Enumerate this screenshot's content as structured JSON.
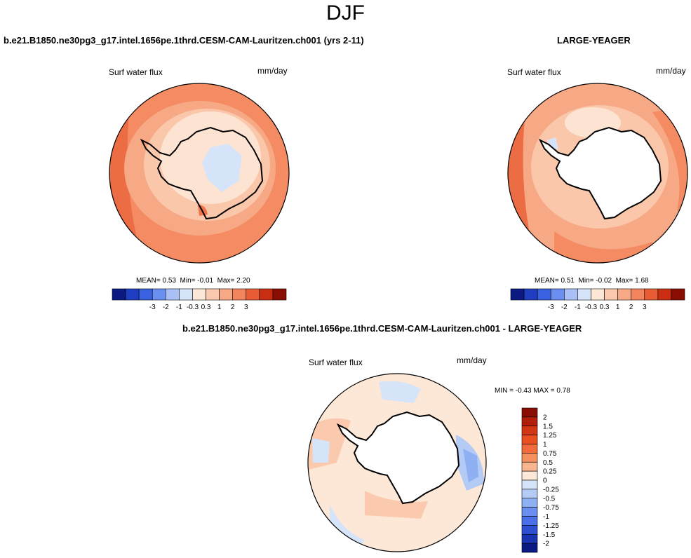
{
  "figure": {
    "title": "DJF"
  },
  "panels": [
    {
      "title": "b.e21.B1850.ne30pg3_g17.intel.1656pe.1thrd.CESM-CAM-Lauritzen.ch001 (yrs 2-11)",
      "variable": "Surf water flux",
      "units": "mm/day",
      "stats": {
        "mean_label": "MEAN=",
        "mean": "0.53",
        "min_label": "Min=",
        "min": "-0.01",
        "max_label": "Max=",
        "max": "2.20"
      }
    },
    {
      "title": "LARGE-YEAGER",
      "variable": "Surf water flux",
      "units": "mm/day",
      "stats": {
        "mean_label": "MEAN=",
        "mean": "0.51",
        "min_label": "Min=",
        "min": "-0.02",
        "max_label": "Max=",
        "max": "1.68"
      }
    },
    {
      "title": "b.e21.B1850.ne30pg3_g17.intel.1656pe.1thrd.CESM-CAM-Lauritzen.ch001 - LARGE-YEAGER",
      "variable": "Surf water flux",
      "units": "mm/day",
      "stats": {
        "min_label": "MIN =",
        "min": "-0.43",
        "max_label": "MAX =",
        "max": "0.78"
      }
    }
  ],
  "chart_data": [
    {
      "type": "heatmap",
      "projection": "south-polar-stereographic",
      "title": "b.e21.B1850.ne30pg3_g17.intel.1656pe.1thrd.CESM-CAM-Lauritzen.ch001 (yrs 2-11)",
      "variable": "Surf water flux",
      "units": "mm/day",
      "mean": 0.53,
      "min": -0.01,
      "max": 2.2,
      "colorbar": {
        "orientation": "horizontal",
        "levels": [
          -3,
          -2,
          -1,
          -0.3,
          0.3,
          1,
          2,
          3
        ],
        "level_labels": [
          "-3",
          "-2",
          "-1",
          "-0.3",
          "0.3",
          "1",
          "2",
          "3"
        ],
        "colors": [
          "#0a1a80",
          "#1f3fc0",
          "#3a62e0",
          "#6b8ff0",
          "#a8c0f5",
          "#d6e4fa",
          "#fde8d8",
          "#fbcaae",
          "#f7a884",
          "#f2845e",
          "#e85d36",
          "#c92d12",
          "#8a0d03"
        ]
      }
    },
    {
      "type": "heatmap",
      "projection": "south-polar-stereographic",
      "title": "LARGE-YEAGER",
      "variable": "Surf water flux",
      "units": "mm/day",
      "mean": 0.51,
      "min": -0.02,
      "max": 1.68,
      "colorbar": {
        "orientation": "horizontal",
        "levels": [
          -3,
          -2,
          -1,
          -0.3,
          0.3,
          1,
          2,
          3
        ],
        "level_labels": [
          "-3",
          "-2",
          "-1",
          "-0.3",
          "0.3",
          "1",
          "2",
          "3"
        ],
        "colors": [
          "#0a1a80",
          "#1f3fc0",
          "#3a62e0",
          "#6b8ff0",
          "#a8c0f5",
          "#d6e4fa",
          "#fde8d8",
          "#fbcaae",
          "#f7a884",
          "#f2845e",
          "#e85d36",
          "#c92d12",
          "#8a0d03"
        ]
      }
    },
    {
      "type": "heatmap",
      "projection": "south-polar-stereographic",
      "title": "b.e21.B1850.ne30pg3_g17.intel.1656pe.1thrd.CESM-CAM-Lauritzen.ch001 - LARGE-YEAGER",
      "variable": "Surf water flux",
      "units": "mm/day",
      "min": -0.43,
      "max": 0.78,
      "colorbar": {
        "orientation": "vertical",
        "levels": [
          2,
          1.5,
          1.25,
          1,
          0.75,
          0.5,
          0.25,
          0,
          -0.25,
          -0.5,
          -0.75,
          -1,
          -1.25,
          -1.5,
          -2
        ],
        "level_labels": [
          "2",
          "1.5",
          "1.25",
          "1",
          "0.75",
          "0.5",
          "0.25",
          "0",
          "-0.25",
          "-0.5",
          "-0.75",
          "-1",
          "-1.25",
          "-1.5",
          "-2"
        ],
        "colors": [
          "#8a0d03",
          "#b01f0a",
          "#d23612",
          "#ea4f22",
          "#f26b3c",
          "#f6905f",
          "#f9b58f",
          "#fde8d8",
          "#d6e4fa",
          "#b4cbf6",
          "#8fb0f2",
          "#6b8ff0",
          "#4a6fe6",
          "#2e4fd2",
          "#1a33b0",
          "#0a1a80"
        ]
      }
    }
  ]
}
